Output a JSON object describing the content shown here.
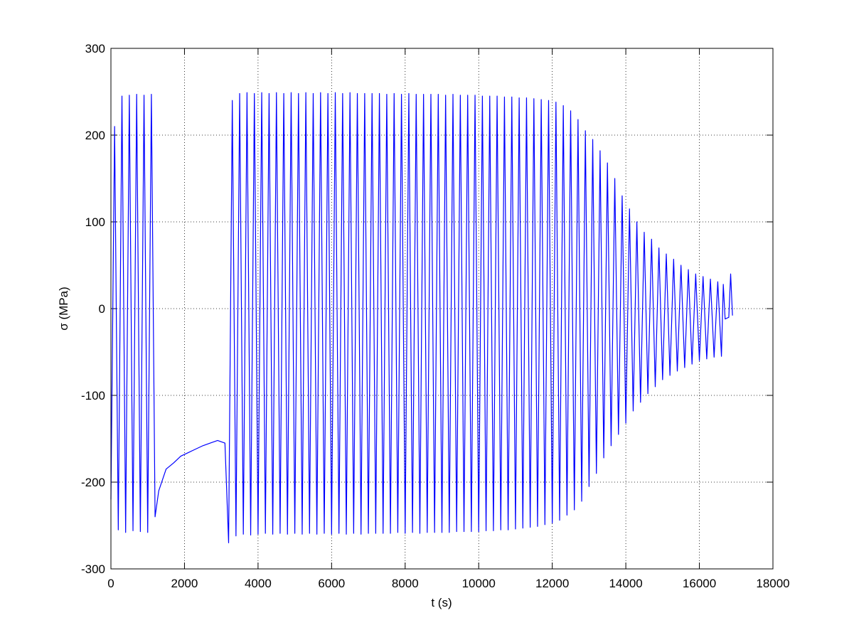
{
  "chart_data": {
    "type": "line",
    "x_label": "t (s)",
    "y_label": "σ (MPa)",
    "xlim": [
      0,
      18000
    ],
    "ylim": [
      -300,
      300
    ],
    "xticks": [
      0,
      2000,
      4000,
      6000,
      8000,
      10000,
      12000,
      14000,
      16000,
      18000
    ],
    "yticks": [
      -300,
      -200,
      -100,
      0,
      100,
      200,
      300
    ],
    "grid": true,
    "x": [
      0,
      100,
      200,
      300,
      400,
      500,
      600,
      700,
      800,
      900,
      1000,
      1100,
      1200,
      1300,
      1500,
      1700,
      1900,
      2100,
      2300,
      2500,
      2700,
      2900,
      3100,
      3200,
      3300,
      3400,
      3500,
      3600,
      3700,
      3800,
      3900,
      4000,
      4100,
      4200,
      4300,
      4400,
      4500,
      4600,
      4700,
      4800,
      4900,
      5000,
      5100,
      5200,
      5300,
      5400,
      5500,
      5600,
      5700,
      5800,
      5900,
      6000,
      6100,
      6200,
      6300,
      6400,
      6500,
      6600,
      6700,
      6800,
      6900,
      7000,
      7100,
      7200,
      7300,
      7400,
      7500,
      7600,
      7700,
      7800,
      7900,
      8000,
      8100,
      8200,
      8300,
      8400,
      8500,
      8600,
      8700,
      8800,
      8900,
      9000,
      9100,
      9200,
      9300,
      9400,
      9500,
      9600,
      9700,
      9800,
      9900,
      10000,
      10100,
      10200,
      10300,
      10400,
      10500,
      10600,
      10700,
      10800,
      10900,
      11000,
      11100,
      11200,
      11300,
      11400,
      11500,
      11600,
      11700,
      11800,
      11900,
      12000,
      12100,
      12200,
      12300,
      12400,
      12500,
      12600,
      12700,
      12800,
      12900,
      13000,
      13100,
      13200,
      13300,
      13400,
      13500,
      13600,
      13700,
      13800,
      13900,
      14000,
      14100,
      14200,
      14300,
      14400,
      14500,
      14600,
      14700,
      14800,
      14900,
      15000,
      15100,
      15200,
      15300,
      15400,
      15500,
      15600,
      15700,
      15800,
      15900,
      16000,
      16100,
      16200,
      16300,
      16400,
      16500,
      16600,
      16650,
      16700,
      16800,
      16850,
      16900
    ],
    "series": [
      {
        "color": "#0000ff",
        "values": [
          -220,
          210,
          -255,
          245,
          -258,
          246,
          -256,
          247,
          -257,
          246,
          -258,
          247,
          -240,
          -210,
          -185,
          -178,
          -170,
          -166,
          -162,
          -158,
          -155,
          -152,
          -155,
          -270,
          240,
          -262,
          248,
          -260,
          249,
          -261,
          248,
          -260,
          249,
          -259,
          248,
          -260,
          249,
          -259,
          248,
          -260,
          249,
          -259,
          248,
          -260,
          249,
          -259,
          248,
          -260,
          249,
          -259,
          248,
          -260,
          249,
          -259,
          248,
          -260,
          249,
          -259,
          248,
          -260,
          248,
          -259,
          248,
          -259,
          248,
          -259,
          247,
          -259,
          248,
          -258,
          247,
          -259,
          248,
          -258,
          247,
          -259,
          247,
          -258,
          247,
          -258,
          247,
          -258,
          246,
          -258,
          247,
          -257,
          246,
          -257,
          246,
          -257,
          246,
          -257,
          245,
          -256,
          245,
          -256,
          245,
          -255,
          244,
          -255,
          244,
          -254,
          243,
          -253,
          243,
          -252,
          242,
          -251,
          241,
          -249,
          240,
          -247,
          238,
          -244,
          234,
          -238,
          228,
          -232,
          218,
          -222,
          205,
          -205,
          195,
          -190,
          182,
          -172,
          168,
          -158,
          150,
          -145,
          130,
          -132,
          115,
          -118,
          100,
          -108,
          88,
          -98,
          80,
          -90,
          70,
          -82,
          63,
          -77,
          57,
          -72,
          50,
          -68,
          45,
          -64,
          40,
          -60,
          37,
          -58,
          34,
          -56,
          31,
          -55,
          28,
          -12,
          -10,
          40,
          -8
        ]
      }
    ]
  }
}
